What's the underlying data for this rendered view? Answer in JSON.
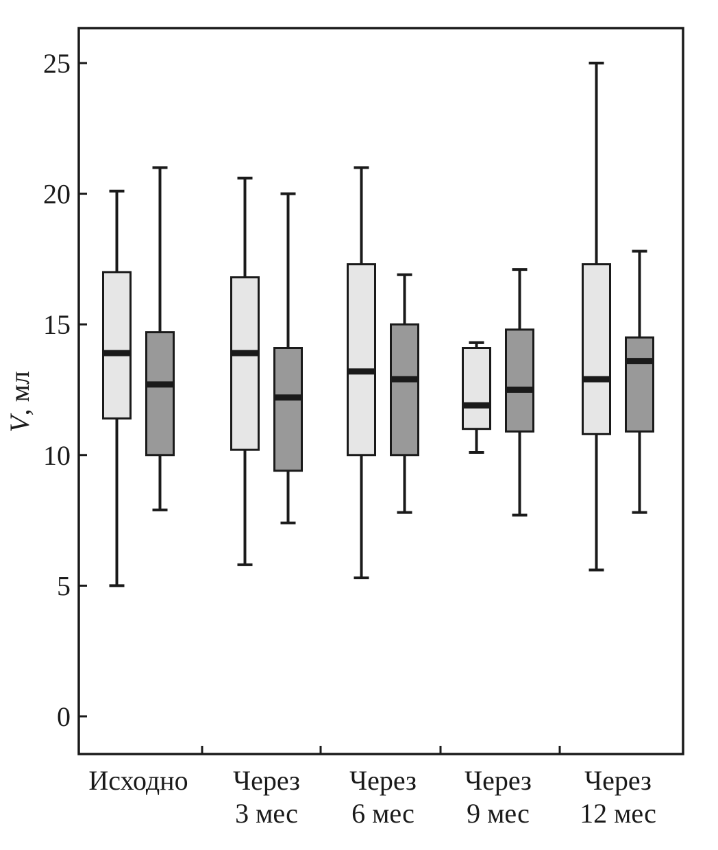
{
  "figure": {
    "background": "#ffffff"
  },
  "chart_data": {
    "type": "boxplot",
    "title": "",
    "ylabel": "V, мл",
    "xlabel": "",
    "grid": false,
    "legend": "none",
    "ylim": [
      -1.4,
      26.3
    ],
    "yticks": [
      25,
      20,
      15,
      10,
      5,
      0
    ],
    "categories": [
      {
        "lines": [
          "Исходно"
        ]
      },
      {
        "lines": [
          "Через",
          "3 мес"
        ]
      },
      {
        "lines": [
          "Через",
          "6 мес"
        ]
      },
      {
        "lines": [
          "Через",
          "9 мес"
        ]
      },
      {
        "lines": [
          "Через",
          "12 мес"
        ]
      }
    ],
    "stroke_color": "#1a1a1a",
    "series": [
      {
        "name": "light-gray-series",
        "fill": "#e6e6e6",
        "boxes": [
          {
            "whisker_low": 5.0,
            "q1": 11.4,
            "median": 13.9,
            "q3": 17.0,
            "whisker_high": 20.1
          },
          {
            "whisker_low": 5.8,
            "q1": 10.2,
            "median": 13.9,
            "q3": 16.8,
            "whisker_high": 20.6
          },
          {
            "whisker_low": 5.3,
            "q1": 10.0,
            "median": 13.2,
            "q3": 17.3,
            "whisker_high": 21.0
          },
          {
            "whisker_low": 10.1,
            "q1": 11.0,
            "median": 11.9,
            "q3": 14.1,
            "whisker_high": 14.3
          },
          {
            "whisker_low": 5.6,
            "q1": 10.8,
            "median": 12.9,
            "q3": 17.3,
            "whisker_high": 25.0
          }
        ]
      },
      {
        "name": "dark-gray-series",
        "fill": "#999999",
        "boxes": [
          {
            "whisker_low": 7.9,
            "q1": 10.0,
            "median": 12.7,
            "q3": 14.7,
            "whisker_high": 21.0
          },
          {
            "whisker_low": 7.4,
            "q1": 9.4,
            "median": 12.2,
            "q3": 14.1,
            "whisker_high": 20.0
          },
          {
            "whisker_low": 7.8,
            "q1": 10.0,
            "median": 12.9,
            "q3": 15.0,
            "whisker_high": 16.9
          },
          {
            "whisker_low": 7.7,
            "q1": 10.9,
            "median": 12.5,
            "q3": 14.8,
            "whisker_high": 17.1
          },
          {
            "whisker_low": 7.8,
            "q1": 10.9,
            "median": 13.6,
            "q3": 14.5,
            "whisker_high": 17.8
          }
        ]
      }
    ]
  }
}
